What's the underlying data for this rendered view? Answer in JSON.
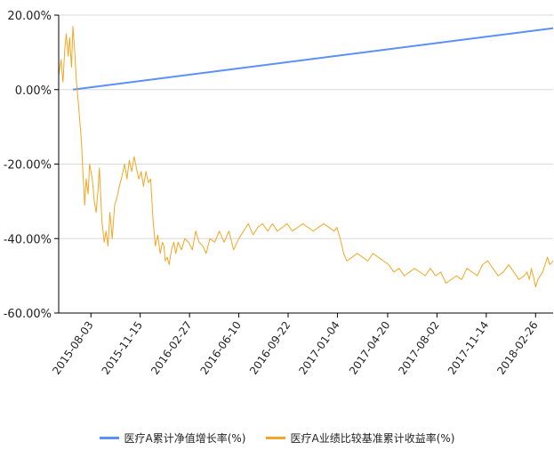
{
  "chart_data": {
    "type": "line",
    "title": "",
    "xlabel": "",
    "ylabel": "",
    "ylim": [
      -60,
      20
    ],
    "y_ticks": [
      "20.00%",
      "0.00%",
      "-20.00%",
      "-40.00%",
      "-60.00%"
    ],
    "y_tick_values": [
      20,
      0,
      -20,
      -40,
      -60
    ],
    "x_range": [
      "2015-05-27",
      "2018-04-04"
    ],
    "x_ticks": [
      "2015-08-03",
      "2015-11-15",
      "2016-02-27",
      "2016-06-10",
      "2016-09-22",
      "2017-01-04",
      "2017-04-20",
      "2017-08-02",
      "2017-11-14",
      "2018-02-26"
    ],
    "grid": "horizontal",
    "legend_position": "bottom",
    "series": [
      {
        "name": "医疗A累计净值增长率(%)",
        "color": "#5b8ff9",
        "x": [
          "2015-06-26",
          "2018-04-04"
        ],
        "y": [
          0,
          16.5
        ]
      },
      {
        "name": "医疗A业绩比较基准累计收益率(%)",
        "color": "#f5a623",
        "x": [
          "2015-05-27",
          "2015-06-01",
          "2015-06-05",
          "2015-06-09",
          "2015-06-12",
          "2015-06-16",
          "2015-06-19",
          "2015-06-23",
          "2015-06-26",
          "2015-06-30",
          "2015-07-03",
          "2015-07-07",
          "2015-07-09",
          "2015-07-14",
          "2015-07-17",
          "2015-07-21",
          "2015-07-24",
          "2015-07-28",
          "2015-07-31",
          "2015-08-06",
          "2015-08-10",
          "2015-08-14",
          "2015-08-18",
          "2015-08-21",
          "2015-08-26",
          "2015-08-31",
          "2015-09-04",
          "2015-09-08",
          "2015-09-12",
          "2015-09-17",
          "2015-09-22",
          "2015-09-27",
          "2015-10-02",
          "2015-10-08",
          "2015-10-13",
          "2015-10-18",
          "2015-10-23",
          "2015-10-28",
          "2015-11-02",
          "2015-11-07",
          "2015-11-12",
          "2015-11-17",
          "2015-11-22",
          "2015-11-27",
          "2015-12-02",
          "2015-12-07",
          "2015-12-12",
          "2015-12-17",
          "2015-12-22",
          "2015-12-27",
          "2016-01-01",
          "2016-01-04",
          "2016-01-07",
          "2016-01-11",
          "2016-01-15",
          "2016-01-20",
          "2016-01-25",
          "2016-01-29",
          "2016-02-03",
          "2016-02-10",
          "2016-02-17",
          "2016-02-25",
          "2016-03-04",
          "2016-03-11",
          "2016-03-18",
          "2016-03-26",
          "2016-04-02",
          "2016-04-10",
          "2016-04-20",
          "2016-04-30",
          "2016-05-10",
          "2016-05-20",
          "2016-05-30",
          "2016-06-10",
          "2016-06-20",
          "2016-06-30",
          "2016-07-10",
          "2016-07-20",
          "2016-07-30",
          "2016-08-10",
          "2016-08-20",
          "2016-08-30",
          "2016-09-10",
          "2016-09-20",
          "2016-10-01",
          "2016-10-12",
          "2016-10-23",
          "2016-11-03",
          "2016-11-14",
          "2016-11-25",
          "2016-12-06",
          "2016-12-17",
          "2016-12-28",
          "2017-01-03",
          "2017-01-10",
          "2017-01-17",
          "2017-01-24",
          "2017-02-04",
          "2017-02-15",
          "2017-02-26",
          "2017-03-09",
          "2017-03-20",
          "2017-03-31",
          "2017-04-11",
          "2017-04-22",
          "2017-05-03",
          "2017-05-14",
          "2017-05-25",
          "2017-06-05",
          "2017-06-16",
          "2017-06-27",
          "2017-07-08",
          "2017-07-19",
          "2017-07-30",
          "2017-08-10",
          "2017-08-21",
          "2017-09-01",
          "2017-09-12",
          "2017-09-23",
          "2017-10-04",
          "2017-10-15",
          "2017-10-26",
          "2017-11-06",
          "2017-11-17",
          "2017-11-28",
          "2017-12-09",
          "2017-12-20",
          "2017-12-31",
          "2018-01-11",
          "2018-01-22",
          "2018-02-02",
          "2018-02-08",
          "2018-02-13",
          "2018-02-17",
          "2018-02-21",
          "2018-02-26",
          "2018-03-03",
          "2018-03-08",
          "2018-03-13",
          "2018-03-18",
          "2018-03-23",
          "2018-03-28",
          "2018-04-04"
        ],
        "y": [
          4,
          8,
          2,
          11,
          15,
          9,
          14,
          6,
          17,
          10,
          3,
          -3,
          -6,
          -14,
          -22,
          -31,
          -24,
          -28,
          -20,
          -24,
          -30,
          -33,
          -27,
          -21,
          -35,
          -41,
          -38,
          -42,
          -33,
          -40,
          -31,
          -29,
          -26,
          -23,
          -20,
          -24,
          -19,
          -22,
          -18,
          -21,
          -24,
          -22,
          -26,
          -22,
          -25,
          -24,
          -35,
          -42,
          -39,
          -44,
          -41,
          -42,
          -46,
          -45,
          -47,
          -43,
          -41,
          -44,
          -41,
          -43,
          -40,
          -41,
          -43,
          -38,
          -41,
          -42,
          -44,
          -40,
          -41,
          -38,
          -41,
          -38,
          -43,
          -40,
          -38,
          -36,
          -39,
          -37,
          -36,
          -38,
          -36,
          -38,
          -37,
          -36,
          -38,
          -37,
          -36,
          -37,
          -38,
          -37,
          -36,
          -37,
          -38,
          -37,
          -40,
          -44,
          -46,
          -45,
          -44,
          -45,
          -46,
          -44,
          -45,
          -46,
          -47,
          -49,
          -48,
          -50,
          -49,
          -48,
          -49,
          -50,
          -48,
          -50,
          -49,
          -52,
          -51,
          -50,
          -51,
          -48,
          -49,
          -50,
          -47,
          -46,
          -48,
          -50,
          -49,
          -47,
          -49,
          -51,
          -50,
          -49,
          -51,
          -48,
          -50,
          -53,
          -51,
          -50,
          -49,
          -47,
          -45,
          -47,
          -46
        ]
      }
    ]
  }
}
